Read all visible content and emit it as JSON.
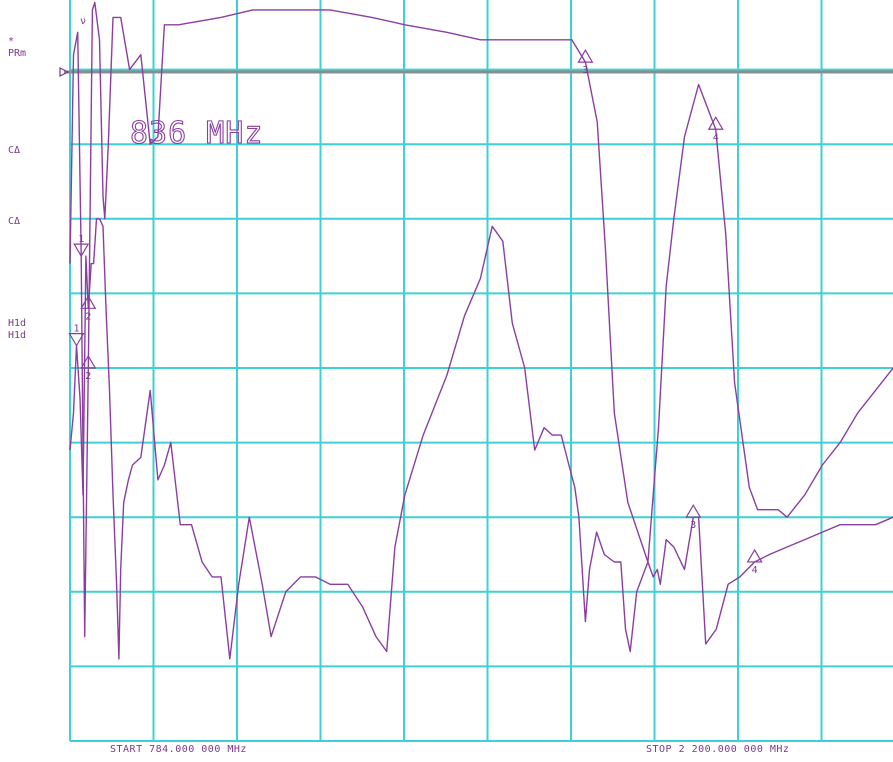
{
  "left_panel": {
    "star": "*",
    "prm": "PRm",
    "ch1_mode": "CΔ",
    "ch2_mode": "CΔ",
    "hld1": "H1d",
    "hld2": "H1d"
  },
  "top_mark": "ν",
  "annotation": "836 MHz",
  "footer": {
    "start": "START  784.000 000 MHz",
    "stop": "STOP 2 200.000 000 MHz"
  },
  "marker_labels": {
    "m1": "1",
    "m2": "2",
    "m3": "3",
    "m4": "4"
  },
  "colors": {
    "grid": "#3fd0d6",
    "trace": "#8a3fa0",
    "reference_line": "#8c8c8c",
    "label_text": "#7a3a8a"
  },
  "chart_data": {
    "type": "line",
    "title": "",
    "xlabel": "",
    "ylabel": "",
    "x_unit": "MHz",
    "xlim": [
      784,
      2200
    ],
    "grid": true,
    "divisions": {
      "x": 10,
      "y": 10
    },
    "marker_frequency_mhz": 836,
    "series": [
      {
        "points": [
          [
            784,
            -3.6
          ],
          [
            790,
            -0.8
          ],
          [
            797,
            -0.5
          ],
          [
            803,
            -3.5
          ],
          [
            809,
            -8.6
          ],
          [
            815,
            -5.0
          ],
          [
            822,
            -0.2
          ],
          [
            826,
            -0.1
          ],
          [
            834,
            -0.6
          ],
          [
            840,
            -2.7
          ],
          [
            843,
            -3.0
          ],
          [
            849,
            -2.0
          ],
          [
            857,
            -0.3
          ],
          [
            870,
            -0.3
          ],
          [
            885,
            -1.0
          ],
          [
            904,
            -0.8
          ],
          [
            920,
            -2.0
          ],
          [
            933,
            -1.9
          ],
          [
            944,
            -0.4
          ],
          [
            968,
            -0.4
          ],
          [
            1040,
            -0.3
          ],
          [
            1094,
            -0.2
          ],
          [
            1160,
            -0.2
          ],
          [
            1225,
            -0.2
          ],
          [
            1296,
            -0.3
          ],
          [
            1352,
            -0.4
          ],
          [
            1423,
            -0.5
          ],
          [
            1480,
            -0.6
          ],
          [
            1572,
            -0.6
          ],
          [
            1635,
            -0.6
          ],
          [
            1658,
            -0.9
          ],
          [
            1678,
            -1.7
          ],
          [
            1692,
            -3.4
          ],
          [
            1707,
            -5.6
          ],
          [
            1730,
            -6.8
          ],
          [
            1764,
            -7.6
          ],
          [
            1782,
            -5.8
          ],
          [
            1795,
            -3.9
          ],
          [
            1808,
            -3.0
          ],
          [
            1826,
            -1.9
          ],
          [
            1850,
            -1.2
          ],
          [
            1879,
            -1.8
          ],
          [
            1896,
            -3.2
          ],
          [
            1911,
            -5.2
          ],
          [
            1936,
            -6.6
          ],
          [
            1950,
            -6.9
          ],
          [
            1969,
            -6.9
          ],
          [
            1985,
            -6.9
          ],
          [
            2000,
            -7.0
          ],
          [
            2030,
            -6.7
          ],
          [
            2060,
            -6.3
          ],
          [
            2090,
            -6.0
          ],
          [
            2120,
            -5.6
          ],
          [
            2150,
            -5.3
          ],
          [
            2180,
            -5.0
          ],
          [
            2200,
            -4.7
          ]
        ]
      },
      {
        "points": [
          [
            784,
            -6.1
          ],
          [
            790,
            -5.6
          ],
          [
            795,
            -4.7
          ],
          [
            801,
            -5.4
          ],
          [
            806,
            -6.7
          ],
          [
            811,
            -3.5
          ],
          [
            815,
            -4.2
          ],
          [
            820,
            -3.6
          ],
          [
            824,
            -3.6
          ],
          [
            829,
            -3.0
          ],
          [
            834,
            -3.0
          ],
          [
            840,
            -3.1
          ],
          [
            845,
            -4.2
          ],
          [
            851,
            -5.3
          ],
          [
            857,
            -6.7
          ],
          [
            863,
            -7.9
          ],
          [
            867,
            -8.9
          ],
          [
            870,
            -7.7
          ],
          [
            875,
            -6.8
          ],
          [
            883,
            -6.5
          ],
          [
            890,
            -6.3
          ],
          [
            904,
            -6.2
          ],
          [
            920,
            -5.3
          ],
          [
            933,
            -6.5
          ],
          [
            944,
            -6.3
          ],
          [
            955,
            -6.0
          ],
          [
            971,
            -7.1
          ],
          [
            990,
            -7.1
          ],
          [
            1008,
            -7.6
          ],
          [
            1025,
            -7.8
          ],
          [
            1040,
            -7.8
          ],
          [
            1055,
            -8.9
          ],
          [
            1070,
            -7.9
          ],
          [
            1088,
            -7.0
          ],
          [
            1110,
            -7.9
          ],
          [
            1125,
            -8.6
          ],
          [
            1150,
            -8.0
          ],
          [
            1175,
            -7.8
          ],
          [
            1200,
            -7.8
          ],
          [
            1225,
            -7.9
          ],
          [
            1255,
            -7.9
          ],
          [
            1280,
            -8.2
          ],
          [
            1303,
            -8.6
          ],
          [
            1321,
            -8.8
          ],
          [
            1335,
            -7.4
          ],
          [
            1352,
            -6.7
          ],
          [
            1383,
            -5.9
          ],
          [
            1423,
            -5.1
          ],
          [
            1453,
            -4.3
          ],
          [
            1480,
            -3.8
          ],
          [
            1500,
            -3.1
          ],
          [
            1518,
            -3.3
          ],
          [
            1534,
            -4.4
          ],
          [
            1555,
            -5.0
          ],
          [
            1572,
            -6.1
          ],
          [
            1588,
            -5.8
          ],
          [
            1602,
            -5.9
          ],
          [
            1617,
            -5.9
          ],
          [
            1630,
            -6.3
          ],
          [
            1640,
            -6.6
          ],
          [
            1647,
            -7.0
          ],
          [
            1658,
            -8.4
          ],
          [
            1665,
            -7.7
          ],
          [
            1677,
            -7.2
          ],
          [
            1690,
            -7.5
          ],
          [
            1707,
            -7.6
          ],
          [
            1718,
            -7.6
          ],
          [
            1726,
            -8.5
          ],
          [
            1734,
            -8.8
          ],
          [
            1745,
            -8.0
          ],
          [
            1764,
            -7.6
          ],
          [
            1773,
            -7.8
          ],
          [
            1780,
            -7.7
          ],
          [
            1785,
            -7.9
          ],
          [
            1795,
            -7.3
          ],
          [
            1808,
            -7.4
          ],
          [
            1826,
            -7.7
          ],
          [
            1841,
            -7.0
          ],
          [
            1850,
            -7.0
          ],
          [
            1862,
            -8.7
          ],
          [
            1880,
            -8.5
          ],
          [
            1900,
            -7.9
          ],
          [
            1920,
            -7.8
          ],
          [
            1945,
            -7.6
          ],
          [
            1970,
            -7.5
          ],
          [
            2000,
            -7.4
          ],
          [
            2030,
            -7.3
          ],
          [
            2060,
            -7.2
          ],
          [
            2090,
            -7.1
          ],
          [
            2120,
            -7.1
          ],
          [
            2150,
            -7.1
          ],
          [
            2180,
            -7.0
          ],
          [
            2200,
            -7.0
          ]
        ]
      }
    ]
  }
}
